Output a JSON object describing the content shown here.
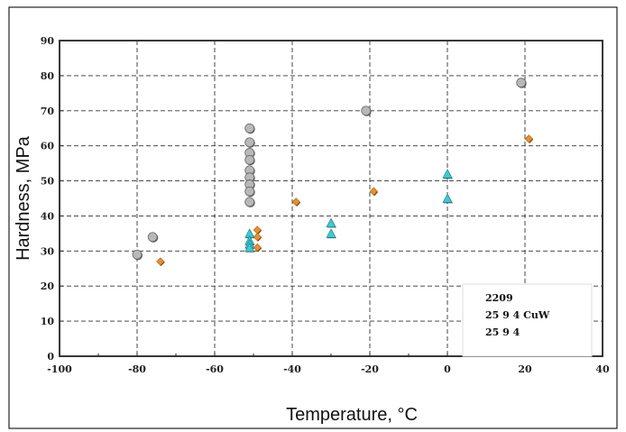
{
  "chart_data": {
    "type": "scatter",
    "title": "",
    "xlabel": "Temperature, °C",
    "ylabel": "Hardness, MPa",
    "xlim": [
      -100,
      40
    ],
    "ylim": [
      0,
      90
    ],
    "x_ticks": [
      -100,
      -80,
      -60,
      -40,
      -20,
      0,
      20,
      40
    ],
    "y_ticks": [
      0,
      10,
      20,
      30,
      40,
      50,
      60,
      70,
      80,
      90
    ],
    "grid": true,
    "legend_position": "bottom-right",
    "series": [
      {
        "name": "2209",
        "marker": "circle",
        "color": "#b8b8b8",
        "points": [
          [
            -80,
            29
          ],
          [
            -76,
            34
          ],
          [
            -51,
            65
          ],
          [
            -51,
            61
          ],
          [
            -51,
            58
          ],
          [
            -51,
            56
          ],
          [
            -51,
            53
          ],
          [
            -51,
            51
          ],
          [
            -51,
            49
          ],
          [
            -51,
            47
          ],
          [
            -51,
            44
          ],
          [
            -21,
            70
          ],
          [
            19,
            78
          ]
        ]
      },
      {
        "name": "25 9 4 CuW",
        "marker": "triangle",
        "color": "#40c8d0",
        "points": [
          [
            -51,
            35
          ],
          [
            -51,
            33
          ],
          [
            -51,
            32
          ],
          [
            -51,
            31
          ],
          [
            -30,
            38
          ],
          [
            -30,
            35
          ],
          [
            0,
            52
          ],
          [
            0,
            45
          ]
        ]
      },
      {
        "name": "25 9 4",
        "marker": "diamond",
        "color": "#e8902a",
        "points": [
          [
            -74,
            27
          ],
          [
            -49,
            36
          ],
          [
            -49,
            34
          ],
          [
            -49,
            31
          ],
          [
            -39,
            44
          ],
          [
            -19,
            47
          ],
          [
            21,
            62
          ]
        ]
      }
    ]
  }
}
